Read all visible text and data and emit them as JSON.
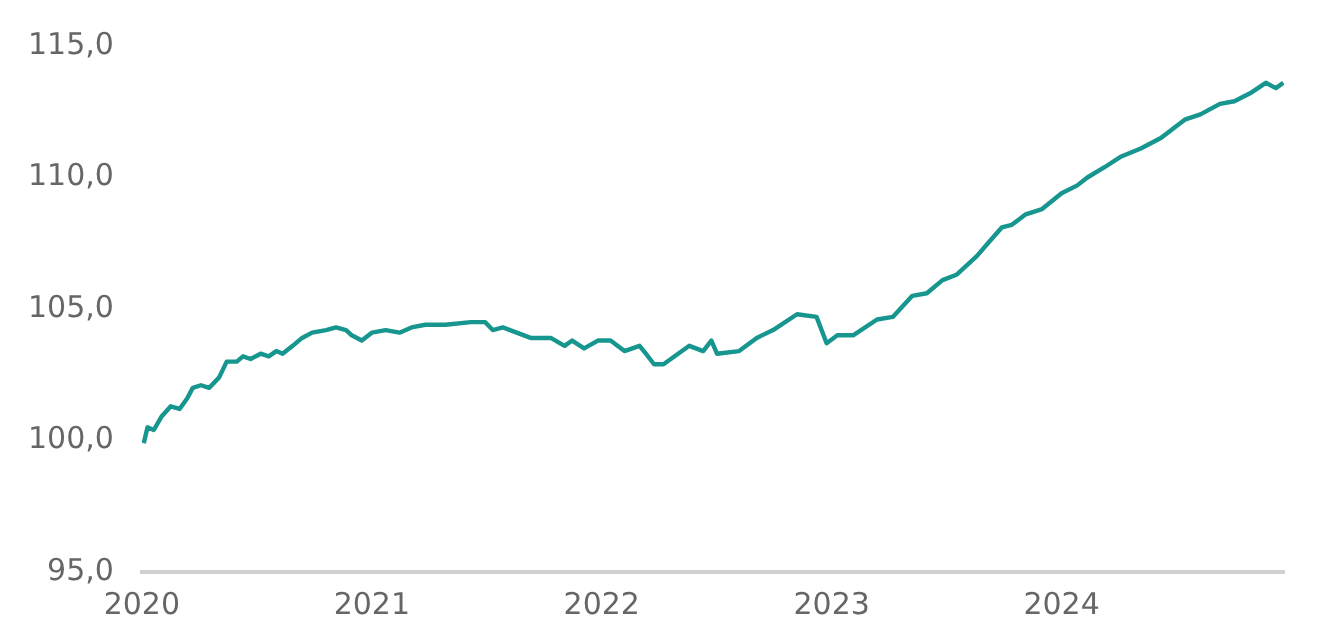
{
  "chart_data": {
    "type": "line",
    "color": "#17968f",
    "grid": false,
    "legend": false,
    "marker": "none",
    "line_style": "solid",
    "x": [
      "2020-01-04",
      "2020-01-10",
      "2020-01-20",
      "2020-02-01",
      "2020-02-16",
      "2020-03-01",
      "2020-03-13",
      "2020-03-22",
      "2020-04-04",
      "2020-04-17",
      "2020-05-03",
      "2020-05-15",
      "2020-05-31",
      "2020-06-10",
      "2020-06-22",
      "2020-07-08",
      "2020-07-21",
      "2020-08-02",
      "2020-08-12",
      "2020-08-28",
      "2020-09-12",
      "2020-09-28",
      "2020-10-20",
      "2020-11-05",
      "2020-11-21",
      "2020-11-30",
      "2020-12-16",
      "2021-01-01",
      "2021-01-23",
      "2021-02-14",
      "2021-03-05",
      "2021-03-27",
      "2021-04-28",
      "2021-06-07",
      "2021-06-30",
      "2021-07-12",
      "2021-07-28",
      "2021-08-19",
      "2021-09-10",
      "2021-10-12",
      "2021-11-03",
      "2021-11-15",
      "2021-12-04",
      "2021-12-26",
      "2022-01-15",
      "2022-02-06",
      "2022-03-02",
      "2022-03-12",
      "2022-03-25",
      "2022-04-09",
      "2022-05-20",
      "2022-06-11",
      "2022-06-24",
      "2022-07-03",
      "2022-08-07",
      "2022-09-04",
      "2022-09-30",
      "2022-11-07",
      "2022-12-08",
      "2022-12-24",
      "2023-01-10",
      "2023-02-04",
      "2023-03-14",
      "2023-04-08",
      "2023-05-09",
      "2023-06-01",
      "2023-06-26",
      "2023-07-18",
      "2023-08-19",
      "2023-09-06",
      "2023-09-28",
      "2023-10-14",
      "2023-11-05",
      "2023-12-01",
      "2024-01-01",
      "2024-01-26",
      "2024-02-11",
      "2024-03-10",
      "2024-04-05",
      "2024-05-06",
      "2024-06-07",
      "2024-07-15",
      "2024-08-09",
      "2024-09-09",
      "2024-10-02",
      "2024-10-27",
      "2024-11-21",
      "2024-12-07",
      "2024-12-19"
    ],
    "values": [
      99.9,
      100.5,
      100.4,
      100.9,
      101.3,
      101.2,
      101.6,
      102.0,
      102.1,
      102.0,
      102.4,
      103.0,
      103.0,
      103.2,
      103.1,
      103.3,
      103.2,
      103.4,
      103.3,
      103.6,
      103.9,
      104.1,
      104.2,
      104.3,
      104.2,
      104.0,
      103.8,
      104.1,
      104.2,
      104.1,
      104.3,
      104.4,
      104.4,
      104.5,
      104.5,
      104.2,
      104.3,
      104.1,
      103.9,
      103.9,
      103.6,
      103.8,
      103.5,
      103.8,
      103.8,
      103.4,
      103.6,
      103.3,
      102.9,
      102.9,
      103.6,
      103.4,
      103.8,
      103.3,
      103.4,
      103.9,
      104.2,
      104.8,
      104.7,
      103.7,
      104.0,
      104.0,
      104.6,
      104.7,
      105.5,
      105.6,
      106.1,
      106.3,
      107.0,
      107.5,
      108.1,
      108.2,
      108.6,
      108.8,
      109.4,
      109.7,
      110.0,
      110.4,
      110.8,
      111.1,
      111.5,
      112.2,
      112.4,
      112.8,
      112.9,
      113.2,
      113.6,
      113.4,
      113.6
    ],
    "xlim": [
      "2020-01-01",
      "2024-12-20"
    ],
    "xticks": [
      {
        "value": "2020",
        "label": "2020"
      },
      {
        "value": "2021",
        "label": "2021"
      },
      {
        "value": "2022",
        "label": "2022"
      },
      {
        "value": "2023",
        "label": "2023"
      },
      {
        "value": "2024",
        "label": "2024"
      }
    ],
    "ylim": [
      95,
      115
    ],
    "yticks": [
      {
        "value": 95,
        "label": "95,0"
      },
      {
        "value": 100,
        "label": "100,0"
      },
      {
        "value": 105,
        "label": "105,0"
      },
      {
        "value": 110,
        "label": "110,0"
      },
      {
        "value": 115,
        "label": "115,0"
      }
    ]
  }
}
